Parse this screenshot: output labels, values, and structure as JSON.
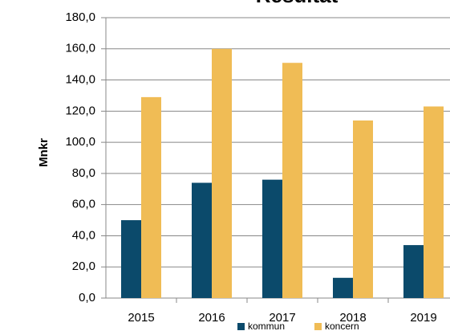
{
  "chart_data": {
    "type": "bar",
    "title": "Resultat",
    "y_label": "Mnkr",
    "categories": [
      "2015",
      "2016",
      "2017",
      "2018",
      "2019"
    ],
    "series": [
      {
        "name": "kommun",
        "color": "#0b4a6b",
        "values": [
          50,
          74,
          76,
          13,
          34
        ]
      },
      {
        "name": "koncern",
        "color": "#f0bc55",
        "values": [
          129,
          160,
          151,
          114,
          123
        ]
      }
    ],
    "ylim": [
      0,
      180
    ],
    "yticks": [
      {
        "value": 0,
        "label": "0,0"
      },
      {
        "value": 20,
        "label": "20,0"
      },
      {
        "value": 40,
        "label": "40,0"
      },
      {
        "value": 60,
        "label": "60,0"
      },
      {
        "value": 80,
        "label": "80,0"
      },
      {
        "value": 100,
        "label": "100,0"
      },
      {
        "value": 120,
        "label": "120,0"
      },
      {
        "value": 140,
        "label": "140,0"
      },
      {
        "value": 160,
        "label": "160,0"
      },
      {
        "value": 180,
        "label": "180,0"
      }
    ],
    "grid": true
  }
}
